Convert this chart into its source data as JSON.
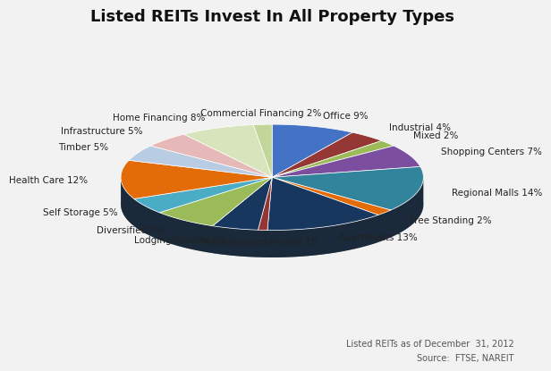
{
  "title": "Listed REITs Invest In All Property Types",
  "footnote1": "Listed REITs as of December  31, 2012",
  "footnote2": "Source:  FTSE, NAREIT",
  "slices": [
    {
      "label": "Office 9%",
      "value": 9,
      "color": "#4472c4"
    },
    {
      "label": "Industrial 4%",
      "value": 4,
      "color": "#953735"
    },
    {
      "label": "Mixed 2%",
      "value": 2,
      "color": "#9bbb59"
    },
    {
      "label": "Shopping Centers 7%",
      "value": 7,
      "color": "#7b4ea0"
    },
    {
      "label": "Regional Malls 14%",
      "value": 14,
      "color": "#31849b"
    },
    {
      "label": "Free Standing 2%",
      "value": 2,
      "color": "#e36c09"
    },
    {
      "label": "Apartments 13%",
      "value": 13,
      "color": "#17375e"
    },
    {
      "label": "Manufactured Homes 1%",
      "value": 1,
      "color": "#963634"
    },
    {
      "label": "Lodging/Resorts 5%",
      "value": 5,
      "color": "#17375e"
    },
    {
      "label": "Diversified 7%",
      "value": 7,
      "color": "#9bbb59"
    },
    {
      "label": "Self Storage 5%",
      "value": 5,
      "color": "#4bacc6"
    },
    {
      "label": "Health Care 12%",
      "value": 12,
      "color": "#e36c09"
    },
    {
      "label": "Timber 5%",
      "value": 5,
      "color": "#b8cce4"
    },
    {
      "label": "Infrastructure 5%",
      "value": 5,
      "color": "#e6b8b7"
    },
    {
      "label": "Home Financing 8%",
      "value": 8,
      "color": "#d7e4bc"
    },
    {
      "label": "Commercial Financing 2%",
      "value": 2,
      "color": "#c2d69a"
    }
  ],
  "startangle": 90,
  "background_color": "#f2f2f2",
  "label_fontsize": 7.5,
  "title_fontsize": 13
}
